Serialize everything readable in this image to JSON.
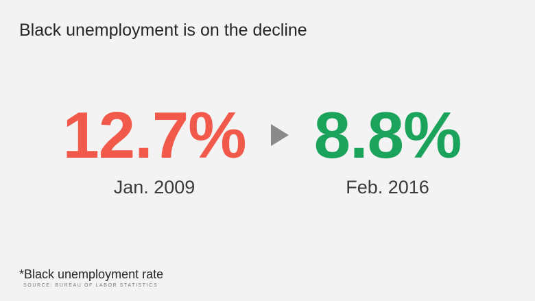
{
  "header": {
    "title": "Black unemployment is on the decline"
  },
  "stats": [
    {
      "value": "12.7%",
      "date": "Jan. 2009",
      "color": "#f15a4b"
    },
    {
      "value": "8.8%",
      "date": "Feb. 2016",
      "color": "#1ba35c"
    }
  ],
  "footer": {
    "note": "*Black unemployment rate",
    "source": "SOURCE: BUREAU OF LABOR STATISTICS"
  }
}
